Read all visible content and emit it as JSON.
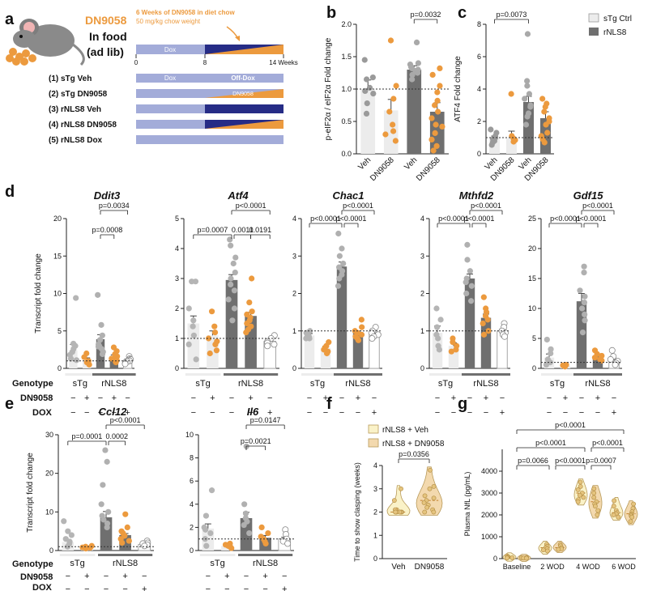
{
  "colors": {
    "light": "#ececec",
    "dark": "#6f6f6f",
    "orange": "#ec9a3e",
    "tan": "#f3d9ae",
    "cream": "#faf2c8",
    "lav": "#a3acd9",
    "navy": "#262c86",
    "dotgray": "#a9a9a9"
  },
  "panels": {
    "a": "a",
    "b": "b",
    "c": "c",
    "d": "d",
    "e": "e",
    "f": "f",
    "g": "g"
  },
  "panel_a": {
    "title": "DN9058",
    "sub1": "In food",
    "sub2": "(ad lib)",
    "note1": "6 Weeks of DN9058 in diet chow",
    "note2": "50 mg/kg chow weight",
    "dox_label": "Dox",
    "off_dox_label": "Off-Dox",
    "dn_label": "DN9058",
    "weeks": [
      "0",
      "8",
      "14 Weeks"
    ],
    "groups": [
      "(1) sTg Veh",
      "(2) sTg DN9058",
      "(3) rNLS8 Veh",
      "(4) rNLS8 DN9058",
      "(5) rNLS8 Dox"
    ]
  },
  "legend_bc": [
    "sTg Ctrl",
    "rNLS8"
  ],
  "factors": {
    "genotype": "Genotype",
    "drug": "DN9058",
    "dox": "DOX",
    "stg": "sTg",
    "rnls8": "rNLS8",
    "d_drug": [
      "−",
      "+",
      "−",
      "+",
      "−"
    ],
    "d_dox": [
      "−",
      "−",
      "−",
      "−",
      "+"
    ],
    "e_drug": [
      "−",
      "+",
      "−",
      "+",
      "−"
    ],
    "e_dox": [
      "−",
      "−",
      "−",
      "−",
      "+"
    ]
  },
  "chart_data": [
    {
      "id": "b",
      "type": "bar",
      "ylabel": "p-eIF2α / eIF2α Fold change",
      "ylim": [
        0,
        2
      ],
      "yticks": [
        "0.0",
        "0.5",
        "1.0",
        "1.5",
        "2.0"
      ],
      "categories": [
        "Veh",
        "DN9058",
        "Veh",
        "DN9058"
      ],
      "values": [
        1.0,
        0.67,
        1.3,
        0.65
      ],
      "errors": [
        0.14,
        0.17,
        0.06,
        0.14
      ],
      "points": [
        [
          1.45,
          1.18,
          1.15,
          1.02,
          0.97,
          0.93,
          0.78,
          0.62
        ],
        [
          1.75,
          1.05,
          0.85,
          0.65,
          0.45,
          0.35,
          0.3,
          0.2
        ],
        [
          1.72,
          1.4,
          1.38,
          1.34,
          1.32,
          1.3,
          1.28,
          1.25,
          1.22,
          1.15
        ],
        [
          1.32,
          1.22,
          1.05,
          0.95,
          0.82,
          0.75,
          0.65,
          0.55,
          0.45,
          0.32,
          0.22,
          0.12,
          0.05,
          0.42
        ]
      ],
      "reference_line": 1.0,
      "annotations": [
        {
          "text": "p=0.0032",
          "from": 2,
          "to": 3
        }
      ]
    },
    {
      "id": "c",
      "type": "bar",
      "ylabel": "ATF4 Fold change",
      "ylim": [
        0,
        8
      ],
      "yticks": [
        "0",
        "2",
        "4",
        "6",
        "8"
      ],
      "categories": [
        "Veh",
        "DN9058",
        "Veh",
        "DN9058"
      ],
      "values": [
        0.95,
        0.95,
        3.2,
        2.2
      ],
      "errors": [
        0.15,
        0.45,
        0.35,
        0.4
      ],
      "points": [
        [
          1.5,
          1.3,
          1.1,
          1.0,
          0.9,
          0.8,
          0.7,
          0.55
        ],
        [
          3.7,
          1.1,
          0.95,
          0.85,
          0.75
        ],
        [
          7.4,
          4.5,
          4.2,
          3.7,
          3.4,
          3.0,
          2.9,
          2.5,
          2.3,
          1.8
        ],
        [
          3.4,
          3.1,
          2.9,
          2.6,
          2.2,
          2.0,
          1.8,
          1.3,
          1.1,
          0.9,
          0.7
        ]
      ],
      "reference_line": 1.0,
      "annotations": [
        {
          "text": "p=0.0073",
          "from": 0,
          "to": 2
        }
      ]
    },
    {
      "id": "Ddit3",
      "type": "bar",
      "title": "Ddit3",
      "ylabel": "Transcript fold change",
      "ylim": [
        0,
        20
      ],
      "yticks": [
        "0",
        "5",
        "10",
        "15",
        "20"
      ],
      "values": [
        2.4,
        1.1,
        3.9,
        1.6,
        1.1
      ],
      "errors": [
        0.8,
        0.3,
        0.6,
        0.2,
        0.15
      ],
      "points": [
        [
          9.4,
          3.3,
          3.0,
          2.6,
          2.2,
          1.8,
          1.3,
          1.1
        ],
        [
          2.0,
          1.5,
          1.0,
          0.8,
          0.5
        ],
        [
          9.8,
          5.8,
          4.4,
          3.8,
          3.2,
          3.0,
          2.9,
          2.6,
          2.2,
          1.9
        ],
        [
          2.8,
          2.3,
          1.9,
          1.6,
          1.4,
          1.3,
          1.2,
          1.1,
          0.9,
          0.8
        ],
        [
          1.6,
          1.3,
          1.2,
          1.1,
          1.0,
          0.9,
          0.7,
          0.6
        ]
      ],
      "reference_line": 1.0,
      "annotations": [
        {
          "text": "p=0.0034",
          "from": 2,
          "to": 4
        },
        {
          "text": "p=0.0008",
          "from": 2,
          "to": 3
        }
      ]
    },
    {
      "id": "Atf4",
      "type": "bar",
      "title": "Atf4",
      "ylabel": "",
      "ylim": [
        0,
        5
      ],
      "yticks": [
        "0",
        "1",
        "2",
        "3",
        "4",
        "5"
      ],
      "values": [
        1.5,
        1.1,
        2.95,
        1.75,
        0.9
      ],
      "errors": [
        0.25,
        0.15,
        0.18,
        0.12,
        0.06
      ],
      "points": [
        [
          2.9,
          2.9,
          2.0,
          1.6,
          1.4,
          1.1,
          0.8,
          0.3
        ],
        [
          1.9,
          1.4,
          1.2,
          1.0,
          0.9,
          0.8,
          0.6,
          0.5
        ],
        [
          4.3,
          4.1,
          3.7,
          3.5,
          3.2,
          3.0,
          2.8,
          2.6,
          2.3,
          2.0,
          1.6
        ],
        [
          3.0,
          2.2,
          1.9,
          1.8,
          1.7,
          1.6,
          1.5,
          1.4,
          1.3,
          1.2
        ],
        [
          1.1,
          1.0,
          0.9,
          0.85,
          0.8,
          0.75
        ]
      ],
      "reference_line": 1.0,
      "annotations": [
        {
          "text": "p<0.0001",
          "from": 2,
          "to": 4
        },
        {
          "text": "p=0.0007",
          "from": 0,
          "to": 2
        },
        {
          "text": "0.0011",
          "from": 2,
          "to": 3
        },
        {
          "text": "0.0191",
          "from": 3,
          "to": 4
        }
      ]
    },
    {
      "id": "Chac1",
      "type": "bar",
      "title": "Chac1",
      "ylabel": "",
      "ylim": [
        0,
        4
      ],
      "yticks": [
        "0",
        "1",
        "2",
        "3",
        "4"
      ],
      "values": [
        0.88,
        0.55,
        2.72,
        0.95,
        0.9
      ],
      "errors": [
        0.05,
        0.04,
        0.12,
        0.05,
        0.04
      ],
      "points": [
        [
          1.0,
          0.95,
          0.9,
          0.85,
          0.8,
          0.8
        ],
        [
          0.7,
          0.6,
          0.55,
          0.5,
          0.45,
          0.4
        ],
        [
          3.6,
          3.2,
          3.0,
          2.8,
          2.7,
          2.6,
          2.5,
          2.4,
          2.2
        ],
        [
          1.3,
          1.1,
          1.0,
          0.95,
          0.9,
          0.85,
          0.8,
          0.75
        ],
        [
          1.1,
          1.0,
          0.95,
          0.9,
          0.85,
          0.8
        ]
      ],
      "reference_line": 1.0,
      "annotations": [
        {
          "text": "p<0.0001",
          "from": 2,
          "to": 4
        },
        {
          "text": "p<0.0001",
          "from": 0,
          "to": 2
        },
        {
          "text": "p<0.0001",
          "from": 2,
          "to": 3
        }
      ]
    },
    {
      "id": "Mthfd2",
      "type": "bar",
      "title": "Mthfd2",
      "ylabel": "",
      "ylim": [
        0,
        4
      ],
      "yticks": [
        "0",
        "1",
        "2",
        "3",
        "4"
      ],
      "values": [
        0.95,
        0.6,
        2.4,
        1.35,
        1.0
      ],
      "errors": [
        0.18,
        0.08,
        0.12,
        0.1,
        0.04
      ],
      "points": [
        [
          1.6,
          1.3,
          1.1,
          0.9,
          0.8,
          0.6,
          0.5
        ],
        [
          0.8,
          0.7,
          0.6,
          0.5,
          0.45
        ],
        [
          3.3,
          2.9,
          2.6,
          2.4,
          2.3,
          2.2,
          2.0,
          1.8
        ],
        [
          1.9,
          1.6,
          1.5,
          1.4,
          1.3,
          1.2,
          1.0,
          0.9
        ],
        [
          1.2,
          1.1,
          1.0,
          0.95,
          0.9,
          0.85
        ]
      ],
      "reference_line": 1.0,
      "annotations": [
        {
          "text": "p<0.0001",
          "from": 2,
          "to": 4
        },
        {
          "text": "p<0.0001",
          "from": 0,
          "to": 2
        },
        {
          "text": "p<0.0001",
          "from": 2,
          "to": 3
        }
      ]
    },
    {
      "id": "Gdf15",
      "type": "bar",
      "title": "Gdf15",
      "ylabel": "",
      "ylim": [
        0,
        25
      ],
      "yticks": [
        "0",
        "5",
        "10",
        "15",
        "20",
        "25"
      ],
      "values": [
        1.8,
        0.45,
        11.2,
        2.0,
        1.4
      ],
      "errors": [
        0.6,
        0.1,
        1.3,
        0.3,
        0.2
      ],
      "points": [
        [
          4.8,
          3.2,
          2.5,
          1.5,
          1.0,
          0.6
        ],
        [
          0.6,
          0.5,
          0.4,
          0.3
        ],
        [
          17,
          16,
          13,
          12,
          11,
          10,
          9,
          8,
          6
        ],
        [
          3.0,
          2.4,
          2.1,
          1.8,
          1.5,
          1.3
        ],
        [
          3.0,
          2.0,
          1.5,
          1.2,
          0.9,
          0.6
        ]
      ],
      "reference_line": 1.0,
      "annotations": [
        {
          "text": "p<0.0001",
          "from": 2,
          "to": 4
        },
        {
          "text": "p<0.0001",
          "from": 0,
          "to": 2
        },
        {
          "text": "p<0.0001",
          "from": 2,
          "to": 3
        }
      ]
    },
    {
      "id": "Ccl12",
      "type": "bar",
      "title": "Ccl12",
      "ylabel": "Transcript fold change",
      "ylim": [
        0,
        30
      ],
      "yticks": [
        "0",
        "10",
        "20",
        "30"
      ],
      "values": [
        2.2,
        0.8,
        8.6,
        4.0,
        1.6
      ],
      "errors": [
        0.5,
        0.15,
        1.5,
        0.4,
        0.2
      ],
      "points": [
        [
          7.6,
          5.0,
          4.0,
          3.0,
          2.3,
          1.8,
          1.0
        ],
        [
          1.2,
          1.0,
          0.8,
          0.7,
          0.5
        ],
        [
          26,
          23,
          17,
          12,
          10,
          9,
          8,
          7,
          6
        ],
        [
          9.4,
          6.0,
          5.0,
          4.5,
          3.8,
          3.0,
          2.5,
          2.0
        ],
        [
          2.5,
          2.0,
          1.8,
          1.5,
          1.2
        ]
      ],
      "reference_line": 1.0,
      "annotations": [
        {
          "text": "p<0.0001",
          "from": 2,
          "to": 4
        },
        {
          "text": "p=0.0001",
          "from": 0,
          "to": 2
        },
        {
          "text": "0.0002",
          "from": 2,
          "to": 3
        }
      ]
    },
    {
      "id": "Il6",
      "type": "bar",
      "title": "Il6",
      "ylabel": "",
      "ylim": [
        0,
        10
      ],
      "yticks": [
        "0",
        "2",
        "4",
        "6",
        "8",
        "10"
      ],
      "values": [
        1.9,
        0.4,
        2.8,
        1.1,
        1.0
      ],
      "errors": [
        0.4,
        0.08,
        0.5,
        0.2,
        0.15
      ],
      "points": [
        [
          5.2,
          3.0,
          2.0,
          1.8,
          1.5,
          1.0,
          0.4
        ],
        [
          0.6,
          0.5,
          0.4,
          0.3,
          0.2
        ],
        [
          9.0,
          4.0,
          3.2,
          2.8,
          2.5,
          2.2,
          1.5
        ],
        [
          2.0,
          1.5,
          1.2,
          1.0,
          0.8,
          0.6
        ],
        [
          1.8,
          1.4,
          1.0,
          0.8,
          0.6
        ]
      ],
      "reference_line": 1.0,
      "annotations": [
        {
          "text": "p=0.0147",
          "from": 2,
          "to": 4
        },
        {
          "text": "p=0.0021",
          "from": 2,
          "to": 3
        }
      ]
    },
    {
      "id": "f",
      "type": "violin",
      "ylabel": "Time to show clasping (weeks)",
      "ylim": [
        0,
        4
      ],
      "yticks": [
        "0",
        "1",
        "2",
        "3",
        "4"
      ],
      "categories": [
        "Veh",
        "DN9058"
      ],
      "legend": [
        "rNLS8 + Veh",
        "rNLS8 + DN9058"
      ],
      "points": [
        [
          3.0,
          2.5,
          2.1,
          2.1,
          2.0,
          2.0,
          2.0,
          2.0,
          2.0,
          2.0
        ],
        [
          3.8,
          3.1,
          3.0,
          2.7,
          2.6,
          2.5,
          2.4,
          2.3,
          2.2,
          2.1,
          2.0,
          2.0
        ]
      ],
      "annotations": [
        {
          "text": "p=0.0356",
          "from": 0,
          "to": 1
        }
      ]
    },
    {
      "id": "g",
      "type": "violin",
      "ylabel": "Plasma NfL (pg/mL)",
      "ylim": [
        0,
        5000
      ],
      "yticks": [
        "0",
        "1000",
        "2000",
        "3000",
        "4000"
      ],
      "categories": [
        "Baseline",
        "2 WOD",
        "4 WOD",
        "6 WOD"
      ],
      "points": [
        [
          120,
          80,
          60,
          40,
          30
        ],
        [
          50,
          40,
          30,
          20
        ],
        [
          650,
          560,
          500,
          450,
          400,
          350
        ],
        [
          650,
          580,
          500,
          450,
          420
        ],
        [
          3500,
          3300,
          3150,
          3000,
          2900,
          2800,
          2700,
          2600
        ],
        [
          3200,
          3000,
          2800,
          2600,
          2500,
          2400,
          2200,
          2000
        ],
        [
          2650,
          2400,
          2200,
          2100,
          2050,
          2000,
          1900
        ],
        [
          2500,
          2300,
          2150,
          2050,
          2000,
          1950,
          1900,
          1700
        ]
      ],
      "annotations": [
        {
          "text": "p<0.0001",
          "from": 0,
          "to": 3
        },
        {
          "text": "p<0.0001",
          "from": 0,
          "to": 2
        },
        {
          "text": "p<0.0001",
          "from": 2,
          "to": 3
        },
        {
          "text": "p=0.0066",
          "from": 0,
          "to": 1
        },
        {
          "text": "p<0.0001",
          "from": 1,
          "to": 2
        },
        {
          "text": "p=0.0007",
          "from": 2,
          "to": 2.7
        }
      ]
    }
  ]
}
